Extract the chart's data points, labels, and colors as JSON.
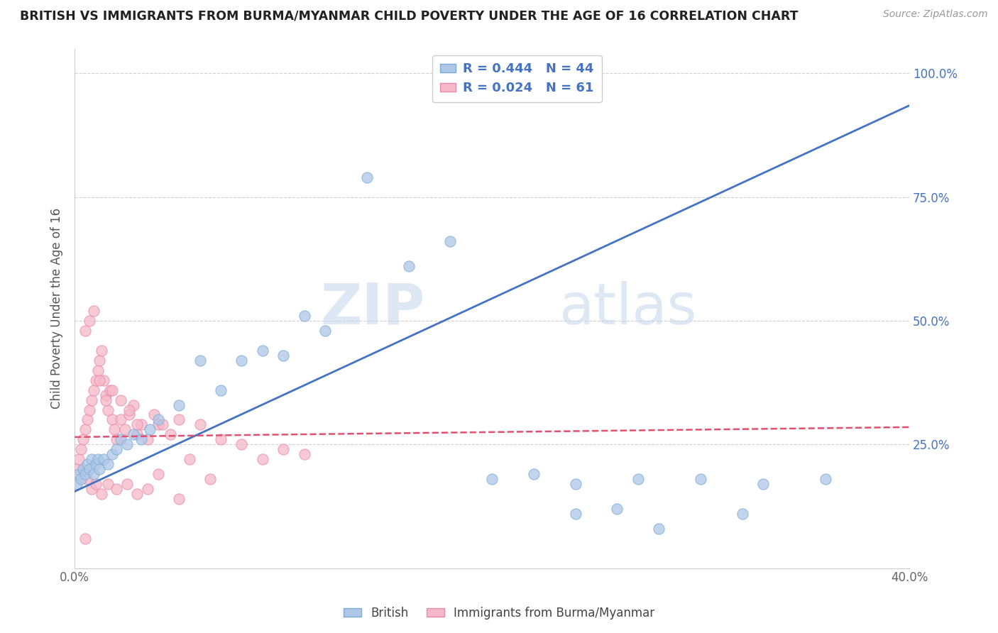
{
  "title": "BRITISH VS IMMIGRANTS FROM BURMA/MYANMAR CHILD POVERTY UNDER THE AGE OF 16 CORRELATION CHART",
  "source": "Source: ZipAtlas.com",
  "ylabel": "Child Poverty Under the Age of 16",
  "xlim": [
    0.0,
    0.4
  ],
  "ylim": [
    0.0,
    1.05
  ],
  "british_color": "#aec6e8",
  "british_edge": "#7aadd4",
  "myanmar_color": "#f5b8c8",
  "myanmar_edge": "#e88aaa",
  "british_line_color": "#4472c4",
  "myanmar_line_color": "#e05070",
  "R_british": 0.444,
  "N_british": 44,
  "R_myanmar": 0.024,
  "N_myanmar": 61,
  "watermark_zip": "ZIP",
  "watermark_atlas": "atlas",
  "legend_british": "British",
  "legend_myanmar": "Immigrants from Burma/Myanmar",
  "british_line_x0": 0.0,
  "british_line_y0": 0.155,
  "british_line_x1": 0.4,
  "british_line_y1": 0.935,
  "myanmar_line_x0": 0.0,
  "myanmar_line_y0": 0.265,
  "myanmar_line_x1": 0.4,
  "myanmar_line_y1": 0.285,
  "british_x": [
    0.001,
    0.002,
    0.003,
    0.004,
    0.005,
    0.006,
    0.007,
    0.008,
    0.009,
    0.01,
    0.011,
    0.012,
    0.014,
    0.016,
    0.018,
    0.02,
    0.022,
    0.025,
    0.028,
    0.032,
    0.036,
    0.04,
    0.05,
    0.06,
    0.07,
    0.08,
    0.09,
    0.1,
    0.11,
    0.12,
    0.14,
    0.16,
    0.18,
    0.2,
    0.22,
    0.24,
    0.27,
    0.3,
    0.33,
    0.36,
    0.24,
    0.26,
    0.28,
    0.32
  ],
  "british_y": [
    0.17,
    0.19,
    0.18,
    0.2,
    0.19,
    0.21,
    0.2,
    0.22,
    0.19,
    0.21,
    0.22,
    0.2,
    0.22,
    0.21,
    0.23,
    0.24,
    0.26,
    0.25,
    0.27,
    0.26,
    0.28,
    0.3,
    0.33,
    0.42,
    0.36,
    0.42,
    0.44,
    0.43,
    0.51,
    0.48,
    0.79,
    0.61,
    0.66,
    0.18,
    0.19,
    0.17,
    0.18,
    0.18,
    0.17,
    0.18,
    0.11,
    0.12,
    0.08,
    0.11
  ],
  "myanmar_x": [
    0.001,
    0.002,
    0.003,
    0.004,
    0.005,
    0.006,
    0.007,
    0.008,
    0.009,
    0.01,
    0.011,
    0.012,
    0.013,
    0.014,
    0.015,
    0.016,
    0.017,
    0.018,
    0.019,
    0.02,
    0.022,
    0.024,
    0.026,
    0.028,
    0.03,
    0.032,
    0.035,
    0.038,
    0.04,
    0.042,
    0.046,
    0.05,
    0.055,
    0.06,
    0.065,
    0.07,
    0.08,
    0.09,
    0.1,
    0.11,
    0.005,
    0.007,
    0.009,
    0.012,
    0.015,
    0.018,
    0.022,
    0.026,
    0.03,
    0.006,
    0.008,
    0.01,
    0.013,
    0.016,
    0.02,
    0.025,
    0.03,
    0.035,
    0.04,
    0.05,
    0.005
  ],
  "myanmar_y": [
    0.2,
    0.22,
    0.24,
    0.26,
    0.28,
    0.3,
    0.32,
    0.34,
    0.36,
    0.38,
    0.4,
    0.42,
    0.44,
    0.38,
    0.35,
    0.32,
    0.36,
    0.3,
    0.28,
    0.26,
    0.3,
    0.28,
    0.31,
    0.33,
    0.27,
    0.29,
    0.26,
    0.31,
    0.29,
    0.29,
    0.27,
    0.3,
    0.22,
    0.29,
    0.18,
    0.26,
    0.25,
    0.22,
    0.24,
    0.23,
    0.48,
    0.5,
    0.52,
    0.38,
    0.34,
    0.36,
    0.34,
    0.32,
    0.29,
    0.18,
    0.16,
    0.17,
    0.15,
    0.17,
    0.16,
    0.17,
    0.15,
    0.16,
    0.19,
    0.14,
    0.06
  ]
}
